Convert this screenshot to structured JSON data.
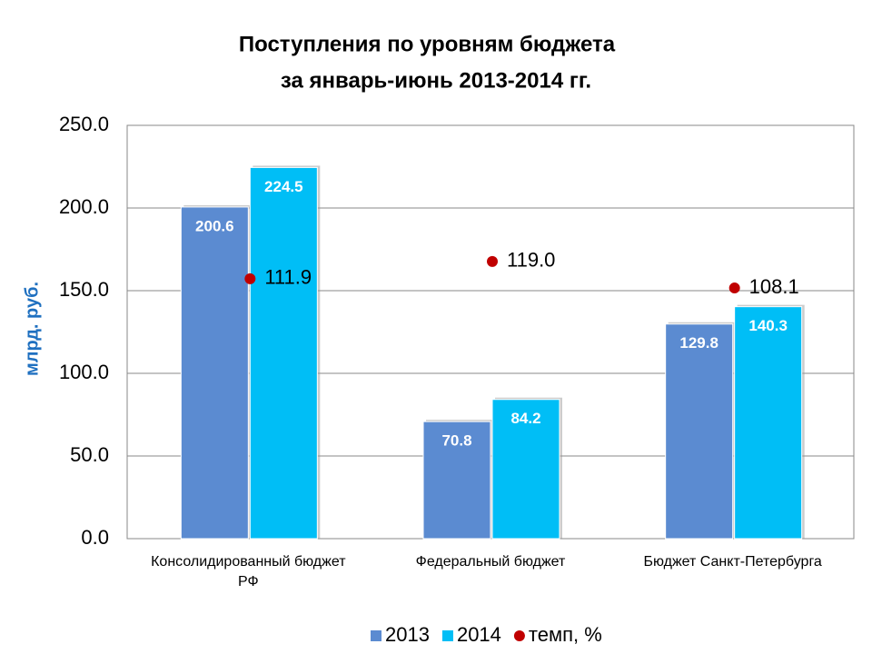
{
  "chart_data": {
    "type": "bar",
    "title": [
      "Поступления по уровням бюджета",
      "за январь-июнь  2013-2014 гг."
    ],
    "y_axis_label": "млрд. руб.",
    "categories": [
      "Консолидированный бюджет РФ",
      "Федеральный бюджет",
      "Бюджет Санкт-Петербурга"
    ],
    "series": [
      {
        "name": "2013",
        "color": "#5b8bd1",
        "values": [
          200.6,
          70.8,
          129.8
        ]
      },
      {
        "name": "2014",
        "color": "#00bef6",
        "values": [
          224.5,
          84.2,
          140.3
        ]
      },
      {
        "name": "темп, %",
        "color": "#c00000",
        "type": "scatter",
        "axis": "y2",
        "values": [
          111.9,
          119.0,
          108.1
        ],
        "value_labels": [
          "111.9",
          "119.0",
          "108.1"
        ]
      }
    ],
    "ylim": [
      0,
      250
    ],
    "yticks": [
      {
        "value": 0,
        "label": "0.0"
      },
      {
        "value": 50,
        "label": "50.0"
      },
      {
        "value": 100,
        "label": "100.0"
      },
      {
        "value": 150,
        "label": "150.0"
      },
      {
        "value": 200,
        "label": "200.0"
      },
      {
        "value": 250,
        "label": "250.0"
      }
    ],
    "y2lim": [
      5,
      175
    ],
    "grid": true,
    "legend": "bottom"
  }
}
